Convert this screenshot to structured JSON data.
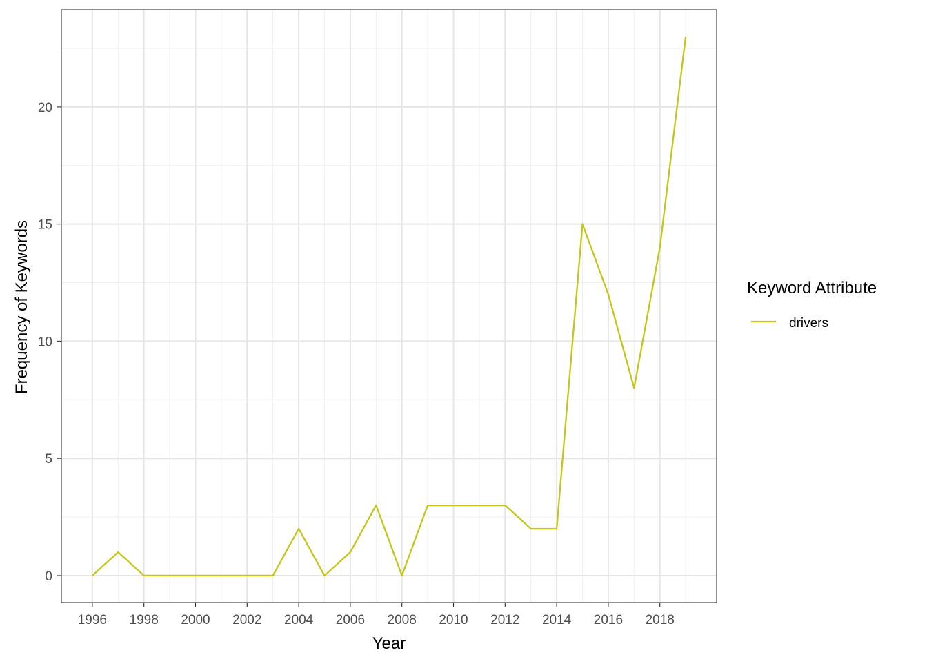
{
  "chart_data": {
    "type": "line",
    "xlabel": "Year",
    "ylabel": "Frequency of Keywords",
    "xlim": [
      1994.8,
      2020.2
    ],
    "ylim": [
      -1.15,
      24.15
    ],
    "x_ticks": [
      1996,
      1998,
      2000,
      2002,
      2004,
      2006,
      2008,
      2010,
      2012,
      2014,
      2016,
      2018
    ],
    "x_tick_labels": [
      "1996",
      "1998",
      "2000",
      "2002",
      "2004",
      "2006",
      "2008",
      "2010",
      "2012",
      "2014",
      "2016",
      "2018"
    ],
    "x_minor_ticks": [
      1997,
      1999,
      2001,
      2003,
      2005,
      2007,
      2009,
      2011,
      2013,
      2015,
      2017,
      2019
    ],
    "y_ticks": [
      0,
      5,
      10,
      15,
      20
    ],
    "y_tick_labels": [
      "0",
      "5",
      "10",
      "15",
      "20"
    ],
    "y_minor_ticks": [
      2.5,
      7.5,
      12.5,
      17.5,
      22.5
    ],
    "grid": true,
    "legend": {
      "title": "Keyword Attribute",
      "position": "right"
    },
    "series": [
      {
        "name": "drivers",
        "color": "#c5c518",
        "x": [
          1996,
          1997,
          1998,
          1999,
          2000,
          2001,
          2002,
          2003,
          2004,
          2005,
          2006,
          2007,
          2008,
          2009,
          2010,
          2011,
          2012,
          2013,
          2014,
          2015,
          2016,
          2017,
          2018,
          2019
        ],
        "y": [
          0,
          1,
          0,
          0,
          0,
          0,
          0,
          0,
          2,
          0,
          1,
          3,
          0,
          3,
          3,
          3,
          3,
          2,
          2,
          15,
          12,
          8,
          14,
          23
        ]
      }
    ]
  }
}
